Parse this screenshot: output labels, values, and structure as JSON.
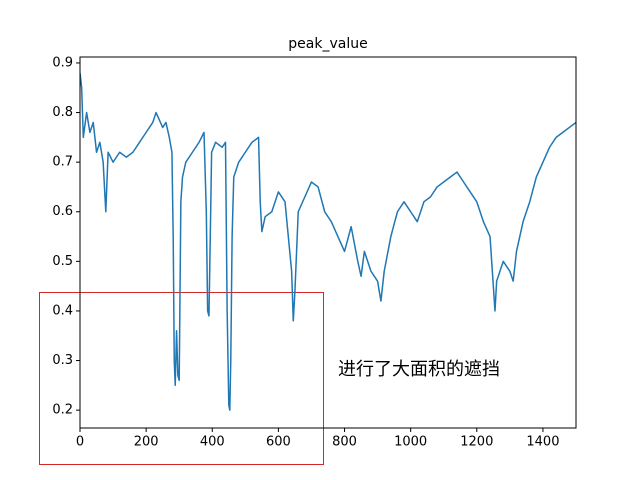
{
  "chart_data": {
    "type": "line",
    "title": "peak_value",
    "annotation": "进行了大面积的遮挡",
    "x": [
      0,
      5,
      10,
      20,
      30,
      40,
      50,
      60,
      70,
      78,
      85,
      100,
      120,
      140,
      160,
      180,
      200,
      220,
      230,
      250,
      260,
      270,
      278,
      282,
      285,
      288,
      292,
      296,
      300,
      305,
      310,
      320,
      340,
      360,
      375,
      382,
      386,
      390,
      394,
      398,
      410,
      430,
      440,
      445,
      450,
      453,
      456,
      460,
      465,
      480,
      500,
      520,
      540,
      545,
      550,
      560,
      580,
      600,
      620,
      630,
      640,
      645,
      650,
      660,
      680,
      700,
      720,
      740,
      760,
      780,
      800,
      820,
      840,
      850,
      860,
      880,
      900,
      910,
      920,
      940,
      960,
      980,
      1000,
      1020,
      1040,
      1060,
      1080,
      1100,
      1120,
      1140,
      1160,
      1180,
      1200,
      1220,
      1240,
      1250,
      1255,
      1260,
      1280,
      1300,
      1310,
      1320,
      1340,
      1360,
      1380,
      1400,
      1420,
      1440,
      1460,
      1480,
      1500
    ],
    "series": [
      {
        "name": "peak_value",
        "color": "#1f77b4",
        "values": [
          0.88,
          0.85,
          0.75,
          0.8,
          0.76,
          0.78,
          0.72,
          0.74,
          0.7,
          0.6,
          0.72,
          0.7,
          0.72,
          0.71,
          0.72,
          0.74,
          0.76,
          0.78,
          0.8,
          0.77,
          0.78,
          0.75,
          0.72,
          0.54,
          0.3,
          0.25,
          0.36,
          0.27,
          0.26,
          0.62,
          0.67,
          0.7,
          0.72,
          0.74,
          0.76,
          0.6,
          0.4,
          0.39,
          0.55,
          0.72,
          0.74,
          0.73,
          0.74,
          0.4,
          0.21,
          0.2,
          0.3,
          0.55,
          0.67,
          0.7,
          0.72,
          0.74,
          0.75,
          0.62,
          0.56,
          0.59,
          0.6,
          0.64,
          0.62,
          0.55,
          0.48,
          0.38,
          0.44,
          0.6,
          0.63,
          0.66,
          0.65,
          0.6,
          0.58,
          0.55,
          0.52,
          0.57,
          0.5,
          0.47,
          0.52,
          0.48,
          0.46,
          0.42,
          0.48,
          0.55,
          0.6,
          0.62,
          0.6,
          0.58,
          0.62,
          0.63,
          0.65,
          0.66,
          0.67,
          0.68,
          0.66,
          0.64,
          0.62,
          0.58,
          0.55,
          0.45,
          0.4,
          0.46,
          0.5,
          0.48,
          0.46,
          0.52,
          0.58,
          0.62,
          0.67,
          0.7,
          0.73,
          0.75,
          0.76,
          0.77,
          0.78
        ]
      }
    ],
    "xlim": [
      0,
      1500
    ],
    "xticks": [
      0,
      200,
      400,
      600,
      800,
      1000,
      1200,
      1400
    ],
    "ylim": [
      0.164,
      0.912
    ],
    "yticks": [
      0.2,
      0.3,
      0.4,
      0.5,
      0.6,
      0.7,
      0.8,
      0.9
    ]
  }
}
